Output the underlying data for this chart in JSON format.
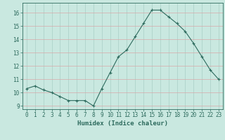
{
  "x": [
    0,
    1,
    2,
    3,
    4,
    5,
    6,
    7,
    8,
    9,
    10,
    11,
    12,
    13,
    14,
    15,
    16,
    17,
    18,
    19,
    20,
    21,
    22,
    23
  ],
  "y": [
    10.3,
    10.5,
    10.2,
    10.0,
    9.7,
    9.4,
    9.4,
    9.4,
    9.0,
    10.3,
    11.5,
    12.7,
    13.2,
    14.2,
    15.2,
    16.2,
    16.2,
    15.7,
    15.2,
    14.6,
    13.7,
    12.7,
    11.7,
    11.0
  ],
  "line_color": "#2e6b5e",
  "marker": "+",
  "marker_color": "#2e6b5e",
  "bg_color": "#c9e8e0",
  "grid_v_color": "#a8cfc5",
  "grid_h_color": "#d8a8a8",
  "xlabel": "Humidex (Indice chaleur)",
  "xlim": [
    -0.5,
    23.5
  ],
  "ylim": [
    8.75,
    16.75
  ],
  "yticks": [
    9,
    10,
    11,
    12,
    13,
    14,
    15,
    16
  ],
  "xticks": [
    0,
    1,
    2,
    3,
    4,
    5,
    6,
    7,
    8,
    9,
    10,
    11,
    12,
    13,
    14,
    15,
    16,
    17,
    18,
    19,
    20,
    21,
    22,
    23
  ],
  "tick_label_color": "#2e6b5e",
  "label_fontsize": 6.5,
  "tick_fontsize": 5.5,
  "linewidth": 0.8,
  "markersize": 3.0
}
